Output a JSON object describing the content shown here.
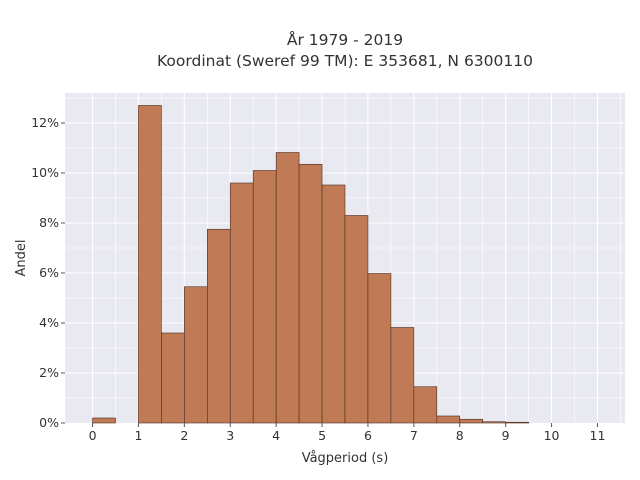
{
  "chart_data": {
    "type": "bar",
    "title": "År 1979 - 2019",
    "subtitle": "Koordinat (Sweref 99 TM): E 353681, N 6300110",
    "xlabel": "Vågperiod (s)",
    "ylabel": "Andel",
    "xlim": [
      -0.6,
      11.6
    ],
    "ylim": [
      0,
      13.2
    ],
    "x_ticks": [
      0,
      1,
      2,
      3,
      4,
      5,
      6,
      7,
      8,
      9,
      10,
      11
    ],
    "x_tick_labels": [
      "0",
      "1",
      "2",
      "3",
      "4",
      "5",
      "6",
      "7",
      "8",
      "9",
      "10",
      "11"
    ],
    "y_ticks": [
      0,
      2,
      4,
      6,
      8,
      10,
      12
    ],
    "y_tick_labels": [
      "0%",
      "2%",
      "4%",
      "6%",
      "8%",
      "10%",
      "12%"
    ],
    "bin_width": 0.5,
    "bins": [
      {
        "start": 0.0,
        "value": 0.2
      },
      {
        "start": 1.0,
        "value": 12.7
      },
      {
        "start": 1.5,
        "value": 3.6
      },
      {
        "start": 2.0,
        "value": 5.45
      },
      {
        "start": 2.5,
        "value": 7.75
      },
      {
        "start": 3.0,
        "value": 9.6
      },
      {
        "start": 3.5,
        "value": 10.1
      },
      {
        "start": 4.0,
        "value": 10.82
      },
      {
        "start": 4.5,
        "value": 10.35
      },
      {
        "start": 5.0,
        "value": 9.52
      },
      {
        "start": 5.5,
        "value": 8.3
      },
      {
        "start": 6.0,
        "value": 5.98
      },
      {
        "start": 6.5,
        "value": 3.82
      },
      {
        "start": 7.0,
        "value": 1.45
      },
      {
        "start": 7.5,
        "value": 0.28
      },
      {
        "start": 8.0,
        "value": 0.15
      },
      {
        "start": 8.5,
        "value": 0.05
      },
      {
        "start": 9.0,
        "value": 0.03
      }
    ],
    "grid": true,
    "colors": {
      "bar": "#c07b56",
      "bar_edge": "#4a2e20",
      "plot_bg": "#e9e9f1",
      "grid": "#ffffff"
    }
  }
}
